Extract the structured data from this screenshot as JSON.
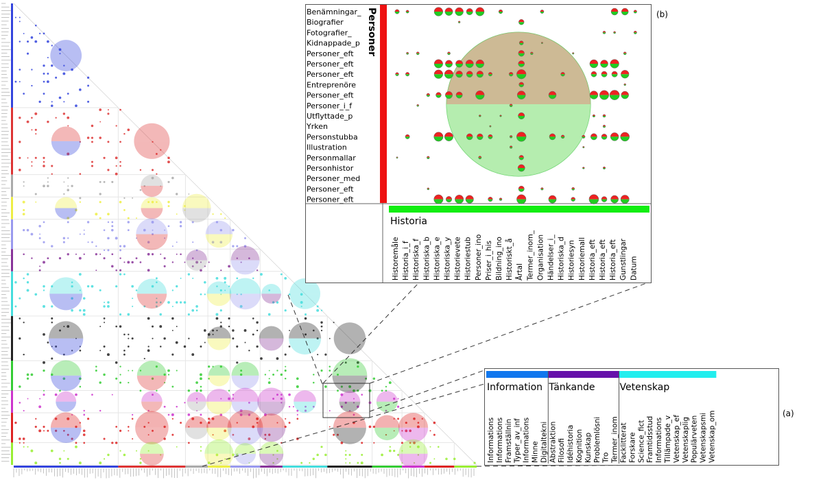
{
  "panel_b": {
    "caption": "(b)",
    "row_group": "Personer",
    "col_group": "Historia",
    "row_group_color": "#ee1111",
    "col_group_color": "#11ee11",
    "rows": [
      "Benämningar_",
      "Biografier",
      "Fotografier_",
      "Kidnappade_p",
      "Personer_eft",
      "Personer_eft",
      "Personer_eft",
      "Entreprenöre",
      "Personer_eft",
      "Personer_i_f",
      "Utflyttade_p",
      "Yrken",
      "Personstubba",
      "Illustration",
      "Personmallar",
      "Personhistor",
      "Personer_med",
      "Personer_eft",
      "Personer_eft"
    ],
    "cols": [
      "Historemåle",
      "Historia_i_f",
      "Historiska_f",
      "Historiska_b",
      "Historiska_e",
      "Historiska_y",
      "Historievete",
      "Historiestub",
      "Personer_ino",
      "Priser_i_his",
      "Bildning_ino",
      "Historiskt_å",
      "Årtal",
      "Termer_inom_",
      "Organisation",
      "Händelser_i_",
      "Historiska_d",
      "Historiesyn",
      "Historiemall",
      "Historia_eft",
      "Historia_eft",
      "Historia_eft",
      "Gunstlingar",
      "Datum"
    ]
  },
  "panel_a": {
    "caption": "(a)",
    "groups": [
      {
        "name": "Information",
        "color": "#1177ee",
        "items": [
          "Informations",
          "Informations",
          "Framställnin",
          "Typer_av_inf",
          "Informations",
          "Minne",
          "Digitaltekni"
        ]
      },
      {
        "name": "Tänkande",
        "color": "#6611aa",
        "items": [
          "Abstraktion",
          "Filosofi",
          "Idéhistoria",
          "Kognition",
          "Kunskap",
          "Problemlösni",
          "Tro",
          "Termer_inom"
        ]
      },
      {
        "name": "Vetenskap",
        "color": "#22eeee",
        "items": [
          "Facklitterat",
          "Forskare",
          "Science_fict",
          "Framtidsstud",
          "Informations",
          "Tillämpade_v",
          "Vetenskap_ef",
          "Vetenskaplig",
          "Populärveten",
          "Vetenskapsmi",
          "Vetenskap_om"
        ]
      }
    ]
  },
  "matrix": {
    "categories": [
      {
        "color": "#3344dd",
        "size": 14
      },
      {
        "color": "#dd3333",
        "size": 9
      },
      {
        "color": "#aaaaaa",
        "size": 3
      },
      {
        "color": "#eeee44",
        "size": 3
      },
      {
        "color": "#9999ee",
        "size": 4
      },
      {
        "color": "#883399",
        "size": 3
      },
      {
        "color": "#44dddd",
        "size": 6
      },
      {
        "color": "#222222",
        "size": 6
      },
      {
        "color": "#33cc33",
        "size": 4
      },
      {
        "color": "#cc33cc",
        "size": 3
      },
      {
        "color": "#dd2222",
        "size": 4
      },
      {
        "color": "#99ee33",
        "size": 3
      }
    ]
  }
}
